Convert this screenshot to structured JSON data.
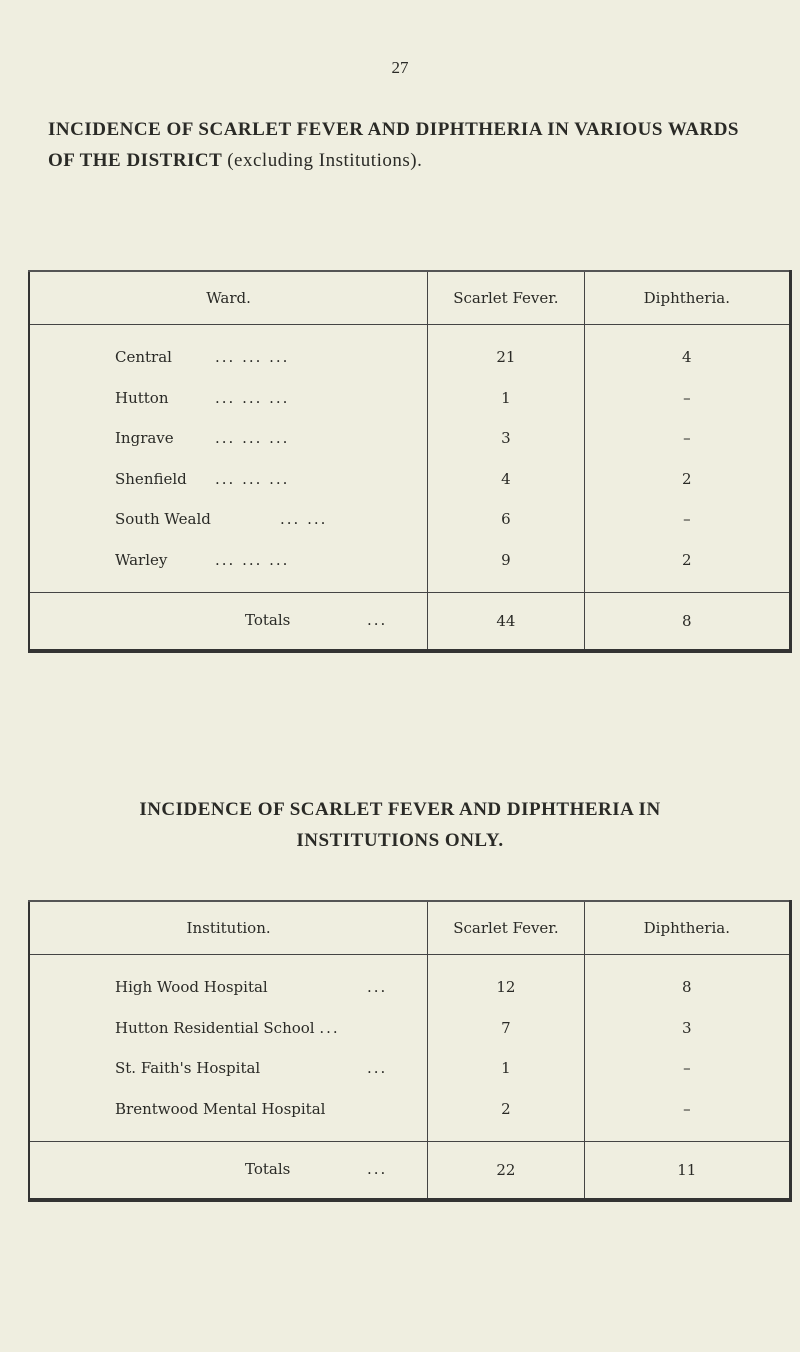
{
  "page_number": "27",
  "table1": {
    "title_bold": "INCIDENCE OF SCARLET FEVER AND DIPHTHERIA IN VARIOUS WARDS OF THE DISTRICT",
    "title_normal": "(excluding Institutions).",
    "headers": [
      "Ward.",
      "Scarlet Fever.",
      "Diphtheria."
    ],
    "rows": [
      {
        "name": "Central",
        "dots": "...   ...   ...",
        "scarlet": "21",
        "diph": "4"
      },
      {
        "name": "Hutton",
        "dots": "...   ...   ...",
        "scarlet": "1",
        "diph": "–"
      },
      {
        "name": "Ingrave",
        "dots": "...   ...   ...",
        "scarlet": "3",
        "diph": "–"
      },
      {
        "name": "Shenfield",
        "dots": "...   ...   ...",
        "scarlet": "4",
        "diph": "2"
      },
      {
        "name": "South Weald",
        "dots": "...   ...",
        "scarlet": "6",
        "diph": "–"
      },
      {
        "name": "Warley",
        "dots": "...   ...   ...",
        "scarlet": "9",
        "diph": "2"
      }
    ],
    "totals": {
      "label": "Totals",
      "dots": "...",
      "scarlet": "44",
      "diph": "8"
    }
  },
  "table2": {
    "title_line1": "INCIDENCE OF SCARLET FEVER AND DIPHTHERIA IN",
    "title_line2": "INSTITUTIONS ONLY.",
    "headers": [
      "Institution.",
      "Scarlet Fever.",
      "Diphtheria."
    ],
    "rows": [
      {
        "name": "High Wood Hospital",
        "dots": "...",
        "scarlet": "12",
        "diph": "8"
      },
      {
        "name": "Hutton Residential School",
        "dots": "...",
        "scarlet": "7",
        "diph": "3"
      },
      {
        "name": "St. Faith's Hospital",
        "dots": "...",
        "scarlet": "1",
        "diph": "–"
      },
      {
        "name": "Brentwood Mental Hospital",
        "dots": "",
        "scarlet": "2",
        "diph": "–"
      }
    ],
    "totals": {
      "label": "Totals",
      "dots": "...",
      "scarlet": "22",
      "diph": "11"
    }
  }
}
